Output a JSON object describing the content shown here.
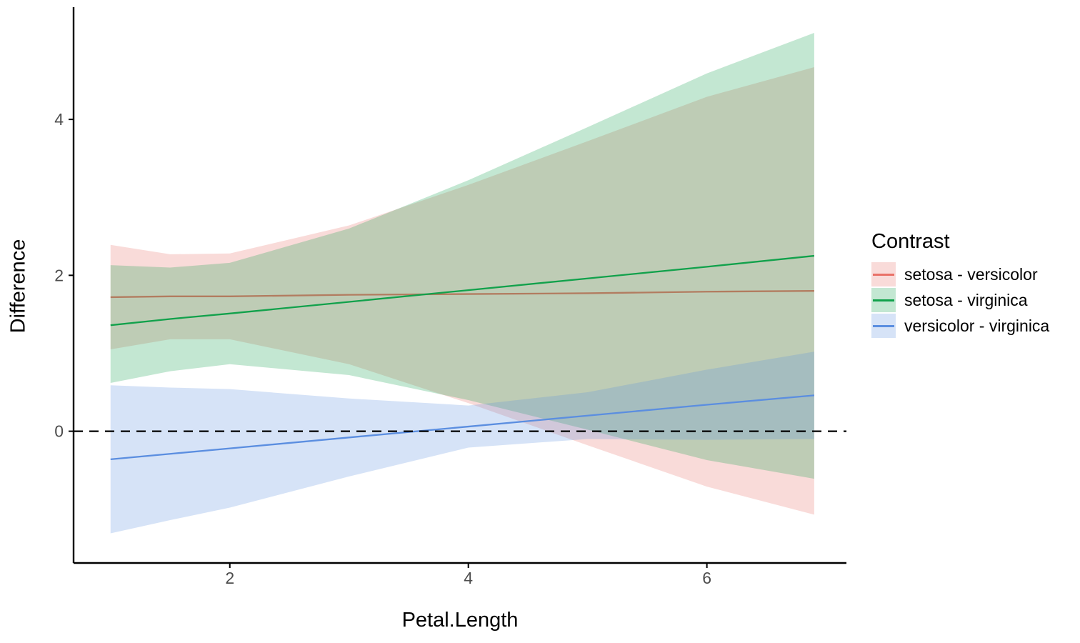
{
  "chart_data": {
    "type": "line",
    "title": "",
    "xlabel": "Petal.Length",
    "ylabel": "Difference",
    "legend_title": "Contrast",
    "legend_position": "right",
    "grid": false,
    "background": "#ffffff",
    "axis_color": "#000000",
    "tick_label_color": "#4d4d4d",
    "xlim": [
      0.69,
      7.17
    ],
    "ylim": [
      -1.69,
      5.44
    ],
    "x_ticks": [
      2,
      4,
      6
    ],
    "y_ticks": [
      0,
      2,
      4
    ],
    "band_opacity": 0.25,
    "reference_line": {
      "y": 0,
      "style": "dashed",
      "color": "#000000"
    },
    "x": [
      1,
      1.5,
      2,
      3,
      4,
      5,
      6,
      6.9
    ],
    "series": [
      {
        "name": "setosa - versicolor",
        "color": "#e97167",
        "values": [
          1.72,
          1.73,
          1.73,
          1.75,
          1.76,
          1.77,
          1.79,
          1.8
        ],
        "ci_upper": [
          2.39,
          2.27,
          2.28,
          2.64,
          3.16,
          3.72,
          4.29,
          4.67
        ],
        "ci_lower": [
          1.05,
          1.18,
          1.18,
          0.86,
          0.36,
          -0.18,
          -0.71,
          -1.07
        ]
      },
      {
        "name": "setosa - virginica",
        "color": "#11a14b",
        "values": [
          1.36,
          1.44,
          1.51,
          1.66,
          1.81,
          1.96,
          2.11,
          2.25
        ],
        "ci_upper": [
          2.13,
          2.1,
          2.16,
          2.6,
          3.22,
          3.9,
          4.59,
          5.11
        ],
        "ci_lower": [
          0.62,
          0.77,
          0.86,
          0.72,
          0.4,
          0.02,
          -0.37,
          -0.61
        ]
      },
      {
        "name": "versicolor - virginica",
        "color": "#5b8ee0",
        "values": [
          -0.36,
          -0.29,
          -0.22,
          -0.08,
          0.06,
          0.2,
          0.34,
          0.46
        ],
        "ci_upper": [
          0.59,
          0.56,
          0.54,
          0.42,
          0.33,
          0.5,
          0.79,
          1.02
        ],
        "ci_lower": [
          -1.31,
          -1.14,
          -0.98,
          -0.58,
          -0.21,
          -0.1,
          -0.11,
          -0.1
        ]
      }
    ]
  }
}
